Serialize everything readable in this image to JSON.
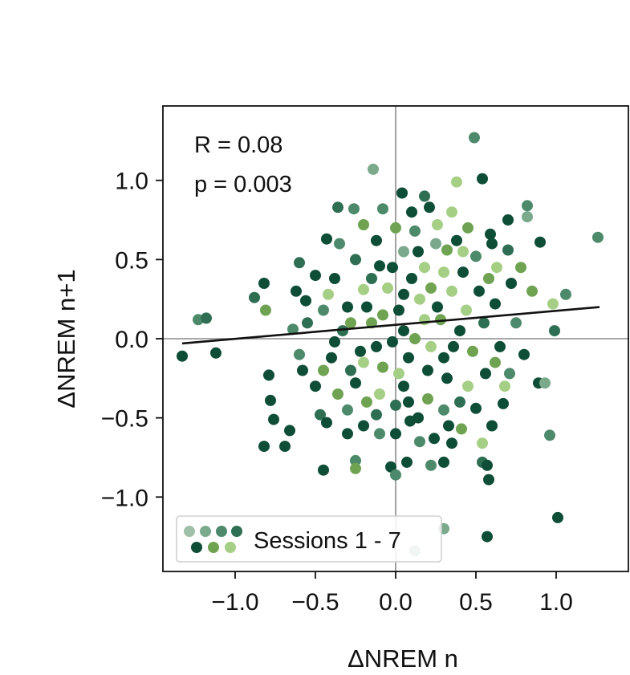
{
  "chart_data": {
    "type": "scatter",
    "xlabel": "ΔNREM n",
    "ylabel": "ΔNREM n+1",
    "xlim": [
      -1.45,
      1.45
    ],
    "ylim": [
      -1.47,
      1.47
    ],
    "xticks": [
      -1.0,
      -0.5,
      0.0,
      0.5,
      1.0
    ],
    "yticks": [
      -1.0,
      -0.5,
      0.0,
      0.5,
      1.0
    ],
    "xtick_labels": [
      "−1.0",
      "−0.5",
      "0.0",
      "0.5",
      "1.0"
    ],
    "ytick_labels": [
      "−1.0",
      "−0.5",
      "0.0",
      "0.5",
      "1.0"
    ],
    "reference_lines": {
      "x": 0,
      "y": 0
    },
    "grid": false,
    "annotations": {
      "r_text": "R = 0.08",
      "p_text": "p = 0.003"
    },
    "regression_line": {
      "x": [
        -1.33,
        1.27
      ],
      "y": [
        -0.03,
        0.2
      ]
    },
    "legend": {
      "label": "Sessions 1 - 7",
      "placement": "lower-left"
    },
    "series_colors": [
      "#9fbfa8",
      "#7aaa8b",
      "#4d8a6b",
      "#2e6e52",
      "#0e4d36",
      "#6fa352",
      "#a6cf86"
    ],
    "points": [
      {
        "x": 0.49,
        "y": 1.27,
        "s": 2
      },
      {
        "x": -0.14,
        "y": 1.07,
        "s": 1
      },
      {
        "x": 0.38,
        "y": 0.99,
        "s": 6
      },
      {
        "x": 0.54,
        "y": 1.01,
        "s": 4
      },
      {
        "x": 1.26,
        "y": 0.64,
        "s": 2
      },
      {
        "x": 0.82,
        "y": 0.84,
        "s": 2
      },
      {
        "x": -1.33,
        "y": -0.11,
        "s": 4
      },
      {
        "x": -1.23,
        "y": 0.12,
        "s": 2
      },
      {
        "x": -1.18,
        "y": 0.13,
        "s": 3
      },
      {
        "x": -1.12,
        "y": -0.09,
        "s": 4
      },
      {
        "x": -0.82,
        "y": 0.35,
        "s": 4
      },
      {
        "x": -0.88,
        "y": 0.26,
        "s": 3
      },
      {
        "x": -0.81,
        "y": 0.18,
        "s": 5
      },
      {
        "x": -0.79,
        "y": -0.23,
        "s": 4
      },
      {
        "x": -0.78,
        "y": -0.39,
        "s": 4
      },
      {
        "x": -0.76,
        "y": -0.51,
        "s": 4
      },
      {
        "x": -0.82,
        "y": -0.68,
        "s": 4
      },
      {
        "x": -0.69,
        "y": -0.68,
        "s": 4
      },
      {
        "x": -0.66,
        "y": -0.58,
        "s": 4
      },
      {
        "x": -0.45,
        "y": -0.83,
        "s": 4
      },
      {
        "x": -0.25,
        "y": -0.77,
        "s": 2
      },
      {
        "x": -0.25,
        "y": -0.82,
        "s": 5
      },
      {
        "x": -0.03,
        "y": -0.81,
        "s": 4
      },
      {
        "x": 0.0,
        "y": -0.86,
        "s": 2
      },
      {
        "x": 0.07,
        "y": -0.78,
        "s": 4
      },
      {
        "x": 0.22,
        "y": -0.8,
        "s": 2
      },
      {
        "x": 0.3,
        "y": -0.78,
        "s": 4
      },
      {
        "x": 0.35,
        "y": -0.66,
        "s": 4
      },
      {
        "x": 0.41,
        "y": -0.57,
        "s": 5
      },
      {
        "x": 0.54,
        "y": -0.78,
        "s": 3
      },
      {
        "x": 0.57,
        "y": -0.8,
        "s": 4
      },
      {
        "x": 0.58,
        "y": -0.89,
        "s": 4
      },
      {
        "x": 0.54,
        "y": -0.66,
        "s": 6
      },
      {
        "x": 0.96,
        "y": -0.61,
        "s": 2
      },
      {
        "x": 1.01,
        "y": -1.13,
        "s": 4
      },
      {
        "x": 0.57,
        "y": -1.25,
        "s": 4
      },
      {
        "x": 0.3,
        "y": -1.2,
        "s": 1
      },
      {
        "x": 0.12,
        "y": -1.34,
        "s": 0
      },
      {
        "x": 0.99,
        "y": 0.05,
        "s": 3
      },
      {
        "x": 1.06,
        "y": 0.28,
        "s": 2
      },
      {
        "x": 0.98,
        "y": 0.22,
        "s": 6
      },
      {
        "x": 0.89,
        "y": -0.28,
        "s": 4
      },
      {
        "x": 0.93,
        "y": -0.28,
        "s": 1
      },
      {
        "x": 0.9,
        "y": 0.61,
        "s": 4
      },
      {
        "x": 0.82,
        "y": 0.77,
        "s": 1
      },
      {
        "x": -0.43,
        "y": 0.63,
        "s": 4
      },
      {
        "x": -0.36,
        "y": 0.83,
        "s": 3
      },
      {
        "x": -0.26,
        "y": 0.82,
        "s": 2
      },
      {
        "x": 0.04,
        "y": 0.92,
        "s": 4
      },
      {
        "x": 0.21,
        "y": 0.83,
        "s": 4
      },
      {
        "x": -0.6,
        "y": 0.48,
        "s": 3
      },
      {
        "x": -0.56,
        "y": 0.24,
        "s": 4
      },
      {
        "x": -0.64,
        "y": 0.06,
        "s": 2
      },
      {
        "x": -0.58,
        "y": -0.2,
        "s": 4
      },
      {
        "x": -0.47,
        "y": -0.48,
        "s": 3
      },
      {
        "x": -0.43,
        "y": -0.53,
        "s": 4
      },
      {
        "x": -0.36,
        "y": -0.35,
        "s": 5
      },
      {
        "x": -0.2,
        "y": -0.55,
        "s": 4
      },
      {
        "x": -0.12,
        "y": -0.48,
        "s": 3
      },
      {
        "x": 0.09,
        "y": -0.52,
        "s": 4
      },
      {
        "x": 0.24,
        "y": -0.63,
        "s": 4
      },
      {
        "x": 0.5,
        "y": -0.44,
        "s": 4
      },
      {
        "x": 0.67,
        "y": -0.41,
        "s": 4
      },
      {
        "x": 0.71,
        "y": -0.22,
        "s": 2
      },
      {
        "x": 0.63,
        "y": 0.45,
        "s": 6
      },
      {
        "x": 0.7,
        "y": 0.56,
        "s": 3
      },
      {
        "x": 0.59,
        "y": 0.66,
        "s": 4
      },
      {
        "x": 0.45,
        "y": 0.7,
        "s": 5
      },
      {
        "x": 0.32,
        "y": 0.56,
        "s": 5
      },
      {
        "x": 0.18,
        "y": 0.45,
        "s": 6
      },
      {
        "x": 0.05,
        "y": 0.55,
        "s": 1
      },
      {
        "x": -0.1,
        "y": 0.46,
        "s": 4
      },
      {
        "x": -0.2,
        "y": 0.31,
        "s": 6
      },
      {
        "x": -0.3,
        "y": 0.2,
        "s": 4
      },
      {
        "x": -0.15,
        "y": 0.1,
        "s": 5
      },
      {
        "x": 0.02,
        "y": 0.18,
        "s": 4
      },
      {
        "x": 0.15,
        "y": 0.25,
        "s": 6
      },
      {
        "x": 0.28,
        "y": 0.12,
        "s": 5
      },
      {
        "x": 0.35,
        "y": 0.3,
        "s": 6
      },
      {
        "x": 0.4,
        "y": 0.05,
        "s": 4
      },
      {
        "x": 0.22,
        "y": -0.05,
        "s": 6
      },
      {
        "x": 0.08,
        "y": -0.12,
        "s": 4
      },
      {
        "x": -0.08,
        "y": -0.18,
        "s": 5
      },
      {
        "x": -0.22,
        "y": -0.08,
        "s": 4
      },
      {
        "x": -0.33,
        "y": 0.05,
        "s": 3
      },
      {
        "x": -0.4,
        "y": -0.12,
        "s": 4
      },
      {
        "x": -0.45,
        "y": 0.18,
        "s": 2
      },
      {
        "x": -0.38,
        "y": 0.38,
        "s": 4
      },
      {
        "x": -0.25,
        "y": 0.5,
        "s": 3
      },
      {
        "x": -0.12,
        "y": 0.62,
        "s": 4
      },
      {
        "x": 0.0,
        "y": 0.7,
        "s": 5
      },
      {
        "x": 0.12,
        "y": 0.68,
        "s": 2
      },
      {
        "x": 0.26,
        "y": 0.72,
        "s": 6
      },
      {
        "x": 0.38,
        "y": 0.62,
        "s": 4
      },
      {
        "x": 0.5,
        "y": 0.52,
        "s": 2
      },
      {
        "x": 0.58,
        "y": 0.38,
        "s": 5
      },
      {
        "x": 0.62,
        "y": 0.22,
        "s": 4
      },
      {
        "x": 0.55,
        "y": 0.1,
        "s": 3
      },
      {
        "x": 0.48,
        "y": -0.08,
        "s": 5
      },
      {
        "x": 0.56,
        "y": -0.22,
        "s": 4
      },
      {
        "x": 0.45,
        "y": -0.3,
        "s": 6
      },
      {
        "x": 0.32,
        "y": -0.25,
        "s": 4
      },
      {
        "x": 0.2,
        "y": -0.38,
        "s": 5
      },
      {
        "x": 0.05,
        "y": -0.3,
        "s": 4
      },
      {
        "x": -0.1,
        "y": -0.35,
        "s": 6
      },
      {
        "x": -0.25,
        "y": -0.28,
        "s": 4
      },
      {
        "x": -0.3,
        "y": -0.45,
        "s": 2
      },
      {
        "x": -0.18,
        "y": -0.4,
        "s": 5
      },
      {
        "x": 0.0,
        "y": -0.42,
        "s": 3
      },
      {
        "x": 0.14,
        "y": -0.5,
        "s": 4
      },
      {
        "x": 0.3,
        "y": -0.45,
        "s": 2
      },
      {
        "x": -0.05,
        "y": 0.32,
        "s": 6
      },
      {
        "x": 0.1,
        "y": 0.38,
        "s": 4
      },
      {
        "x": 0.22,
        "y": 0.32,
        "s": 5
      },
      {
        "x": 0.3,
        "y": 0.42,
        "s": 6
      },
      {
        "x": 0.42,
        "y": 0.42,
        "s": 4
      },
      {
        "x": 0.05,
        "y": 0.05,
        "s": 4
      },
      {
        "x": -0.02,
        "y": -0.02,
        "s": 4
      },
      {
        "x": 0.12,
        "y": 0.0,
        "s": 5
      },
      {
        "x": -0.12,
        "y": -0.05,
        "s": 4
      },
      {
        "x": 0.18,
        "y": 0.12,
        "s": 6
      },
      {
        "x": -0.18,
        "y": 0.2,
        "s": 4
      },
      {
        "x": 0.3,
        "y": -0.12,
        "s": 4
      },
      {
        "x": -0.28,
        "y": -0.2,
        "s": 3
      },
      {
        "x": 0.65,
        "y": -0.05,
        "s": 4
      },
      {
        "x": 0.75,
        "y": 0.1,
        "s": 2
      },
      {
        "x": 0.8,
        "y": -0.1,
        "s": 4
      },
      {
        "x": 0.72,
        "y": 0.35,
        "s": 4
      },
      {
        "x": 0.78,
        "y": 0.45,
        "s": 5
      },
      {
        "x": 0.68,
        "y": -0.3,
        "s": 6
      },
      {
        "x": 0.6,
        "y": -0.55,
        "s": 4
      },
      {
        "x": -0.5,
        "y": 0.4,
        "s": 4
      },
      {
        "x": -0.55,
        "y": 0.1,
        "s": 3
      },
      {
        "x": -0.5,
        "y": -0.3,
        "s": 4
      },
      {
        "x": -0.6,
        "y": -0.1,
        "s": 2
      },
      {
        "x": -0.35,
        "y": 0.6,
        "s": 2
      },
      {
        "x": -0.2,
        "y": 0.72,
        "s": 5
      },
      {
        "x": 0.1,
        "y": 0.8,
        "s": 4
      },
      {
        "x": 0.25,
        "y": 0.6,
        "s": 1
      },
      {
        "x": 0.35,
        "y": 0.8,
        "s": 6
      },
      {
        "x": -0.42,
        "y": 0.28,
        "s": 6
      },
      {
        "x": -0.3,
        "y": -0.6,
        "s": 4
      },
      {
        "x": 0.15,
        "y": -0.65,
        "s": 2
      },
      {
        "x": 0.4,
        "y": -0.4,
        "s": 3
      },
      {
        "x": -0.08,
        "y": 0.15,
        "s": 5
      },
      {
        "x": 0.02,
        "y": -0.22,
        "s": 6
      },
      {
        "x": 0.26,
        "y": 0.2,
        "s": 4
      },
      {
        "x": -0.15,
        "y": 0.38,
        "s": 3
      },
      {
        "x": 0.36,
        "y": -0.05,
        "s": 4
      },
      {
        "x": 0.44,
        "y": 0.18,
        "s": 6
      },
      {
        "x": -0.02,
        "y": 0.45,
        "s": 4
      },
      {
        "x": 0.08,
        "y": -0.4,
        "s": 4
      },
      {
        "x": -0.2,
        "y": -0.15,
        "s": 6
      },
      {
        "x": 0.52,
        "y": 0.3,
        "s": 4
      },
      {
        "x": -0.38,
        "y": -0.02,
        "s": 4
      },
      {
        "x": 0.14,
        "y": 0.55,
        "s": 4
      },
      {
        "x": 0.2,
        "y": -0.2,
        "s": 4
      },
      {
        "x": -0.1,
        "y": -0.6,
        "s": 2
      },
      {
        "x": 0.6,
        "y": 0.6,
        "s": 4
      },
      {
        "x": 0.42,
        "y": 0.55,
        "s": 6
      },
      {
        "x": 0.05,
        "y": 0.28,
        "s": 4
      },
      {
        "x": -0.28,
        "y": 0.1,
        "s": 5
      },
      {
        "x": 0.7,
        "y": 0.75,
        "s": 4
      },
      {
        "x": -0.08,
        "y": 0.82,
        "s": 2
      },
      {
        "x": 0.0,
        "y": -0.6,
        "s": 4
      },
      {
        "x": 0.33,
        "y": -0.55,
        "s": 4
      },
      {
        "x": -0.62,
        "y": 0.3,
        "s": 4
      },
      {
        "x": 0.85,
        "y": 0.3,
        "s": 5
      },
      {
        "x": 0.62,
        "y": -0.15,
        "s": 5
      },
      {
        "x": -0.45,
        "y": -0.2,
        "s": 5
      },
      {
        "x": 0.18,
        "y": 0.9,
        "s": 3
      }
    ]
  }
}
